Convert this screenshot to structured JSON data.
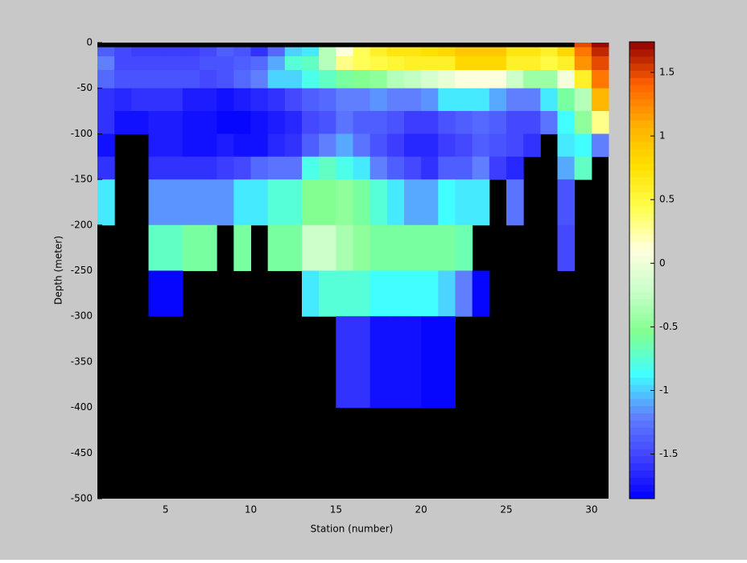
{
  "chart_data": {
    "type": "heatmap",
    "xlabel": "Station (number)",
    "ylabel": "Depth (meter)",
    "x_edges": [
      1,
      2,
      3,
      4,
      5,
      6,
      7,
      8,
      9,
      10,
      11,
      12,
      13,
      14,
      15,
      16,
      17,
      18,
      19,
      20,
      21,
      22,
      23,
      24,
      25,
      26,
      27,
      28,
      29,
      30,
      31
    ],
    "y_edges": [
      0,
      -5,
      -15,
      -30,
      -50,
      -75,
      -100,
      -125,
      -150,
      -200,
      -250,
      -300,
      -400,
      -500
    ],
    "z": [
      [
        null,
        null,
        null,
        null,
        null,
        null,
        null,
        null,
        null,
        null,
        null,
        null,
        null,
        null,
        null,
        null,
        null,
        null,
        null,
        null,
        null,
        null,
        null,
        null,
        null,
        null,
        null,
        null,
        1.5,
        1.7
      ],
      [
        -1.4,
        -1.5,
        -1.55,
        -1.55,
        -1.55,
        -1.55,
        -1.5,
        -1.4,
        -1.45,
        -1.6,
        -1.3,
        -1.0,
        -0.95,
        -0.3,
        0.1,
        0.4,
        0.6,
        0.7,
        0.7,
        0.75,
        0.8,
        0.9,
        0.9,
        0.9,
        0.7,
        0.7,
        0.6,
        0.8,
        1.3,
        1.6
      ],
      [
        -1.2,
        -1.5,
        -1.5,
        -1.5,
        -1.5,
        -1.5,
        -1.45,
        -1.45,
        -1.35,
        -1.3,
        -1.1,
        -0.75,
        -0.7,
        -0.3,
        0.3,
        0.4,
        0.5,
        0.55,
        0.6,
        0.6,
        0.6,
        0.8,
        0.8,
        0.8,
        0.6,
        0.6,
        0.5,
        0.6,
        1.2,
        1.5
      ],
      [
        -1.3,
        -1.45,
        -1.45,
        -1.45,
        -1.45,
        -1.45,
        -1.5,
        -1.45,
        -1.3,
        -1.2,
        -1.0,
        -1.0,
        -0.8,
        -0.7,
        -0.6,
        -0.55,
        -0.45,
        -0.3,
        -0.25,
        -0.15,
        -0.05,
        0.1,
        0.1,
        0.1,
        -0.2,
        -0.4,
        -0.4,
        0.05,
        0.6,
        1.3
      ],
      [
        -1.6,
        -1.65,
        -1.6,
        -1.6,
        -1.6,
        -1.7,
        -1.7,
        -1.75,
        -1.7,
        -1.65,
        -1.6,
        -1.5,
        -1.35,
        -1.3,
        -1.2,
        -1.2,
        -1.15,
        -1.2,
        -1.2,
        -1.15,
        -0.95,
        -0.95,
        -0.95,
        -1.1,
        -1.2,
        -1.2,
        -0.95,
        -0.6,
        -0.3,
        1.05
      ],
      [
        -1.6,
        -1.75,
        -1.75,
        -1.7,
        -1.7,
        -1.75,
        -1.75,
        -1.8,
        -1.8,
        -1.75,
        -1.7,
        -1.65,
        -1.5,
        -1.45,
        -1.25,
        -1.35,
        -1.4,
        -1.45,
        -1.55,
        -1.55,
        -1.45,
        -1.35,
        -1.3,
        -1.4,
        -1.5,
        -1.5,
        -1.25,
        -0.85,
        -0.5,
        0.3
      ],
      [
        -1.75,
        null,
        null,
        -1.7,
        -1.7,
        -1.75,
        -1.75,
        -1.7,
        -1.75,
        -1.75,
        -1.65,
        -1.6,
        -1.35,
        -1.2,
        -1.1,
        -1.25,
        -1.45,
        -1.55,
        -1.65,
        -1.65,
        -1.55,
        -1.5,
        -1.4,
        -1.45,
        -1.5,
        -1.6,
        null,
        -0.9,
        -0.85,
        -1.2
      ],
      [
        -1.6,
        null,
        null,
        -1.6,
        -1.6,
        -1.6,
        -1.6,
        -1.55,
        -1.5,
        -1.3,
        -1.25,
        -1.25,
        -0.8,
        -0.7,
        -0.8,
        -0.95,
        -1.2,
        -1.4,
        -1.5,
        -1.6,
        -1.35,
        -1.35,
        -1.2,
        -1.55,
        -1.65,
        null,
        null,
        -1.1,
        -0.7,
        null
      ],
      [
        -0.95,
        null,
        null,
        -1.15,
        -1.15,
        -1.15,
        -1.15,
        -1.15,
        -0.95,
        -0.9,
        -0.75,
        -0.75,
        -0.55,
        -0.55,
        -0.5,
        -0.6,
        -0.75,
        -0.9,
        -1.1,
        -1.1,
        -0.85,
        -0.9,
        -0.95,
        null,
        -1.25,
        null,
        null,
        -1.45,
        null,
        null
      ],
      [
        null,
        null,
        null,
        -0.7,
        -0.7,
        -0.6,
        -0.6,
        null,
        -0.6,
        null,
        -0.6,
        -0.6,
        -0.2,
        -0.2,
        -0.35,
        -0.45,
        -0.6,
        -0.6,
        -0.6,
        -0.6,
        -0.6,
        -0.65,
        null,
        null,
        null,
        null,
        null,
        -1.5,
        null,
        null
      ],
      [
        null,
        null,
        null,
        -1.85,
        -1.85,
        null,
        null,
        null,
        null,
        null,
        null,
        null,
        -0.95,
        -0.75,
        -0.75,
        -0.75,
        -0.85,
        -0.85,
        -0.85,
        -0.85,
        -1.0,
        -1.2,
        -1.85,
        null,
        null,
        null,
        null,
        null,
        null,
        null
      ],
      [
        null,
        null,
        null,
        null,
        null,
        null,
        null,
        null,
        null,
        null,
        null,
        null,
        null,
        null,
        -1.6,
        -1.6,
        -1.75,
        -1.75,
        -1.75,
        -1.8,
        -1.85,
        null,
        null,
        null,
        null,
        null,
        null,
        null,
        null,
        null
      ],
      [
        null,
        null,
        null,
        null,
        null,
        null,
        null,
        null,
        null,
        null,
        null,
        null,
        null,
        null,
        null,
        null,
        null,
        null,
        null,
        null,
        null,
        null,
        null,
        null,
        null,
        null,
        null,
        null,
        null,
        null
      ]
    ],
    "xlim": [
      1,
      31
    ],
    "xticks": [
      5,
      10,
      15,
      20,
      25,
      30
    ],
    "ylim": [
      -500,
      0
    ],
    "yticks": [
      0,
      -50,
      -100,
      -150,
      -200,
      -250,
      -300,
      -350,
      -400,
      -450,
      -500
    ],
    "clim": [
      -1.85,
      1.74
    ],
    "cticks": [
      1.5,
      1,
      0.5,
      0,
      -0.5,
      -1,
      -1.5
    ],
    "colormap": [
      "#0000ff",
      "#4040ff",
      "#6080ff",
      "#40ffff",
      "#80ff90",
      "#c8ffc8",
      "#ffffe0",
      "#ffff50",
      "#ffe000",
      "#ffb000",
      "#ff6000",
      "#900000"
    ],
    "colormap_levels": 64,
    "nan_color": "#000000",
    "background": "#c8c8c8"
  }
}
